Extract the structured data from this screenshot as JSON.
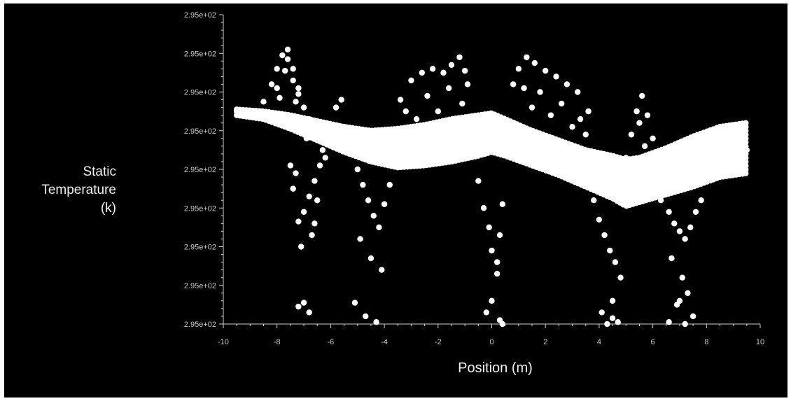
{
  "chart_data": {
    "type": "scatter",
    "title": "",
    "xlabel": "Position (m)",
    "ylabel_lines": [
      "Static",
      "Temperature",
      "(k)"
    ],
    "xlim": [
      -10,
      10
    ],
    "x_ticks": [
      -10,
      -8,
      -6,
      -4,
      -2,
      0,
      2,
      4,
      6,
      8,
      10
    ],
    "x_tick_labels": [
      "-10",
      "-8",
      "-6",
      "-4",
      "-2",
      "0",
      "2",
      "4",
      "6",
      "8",
      "10"
    ],
    "y_tick_labels": [
      "2.95e+02",
      "2.95e+02",
      "2.95e+02",
      "2.95e+02",
      "2.95e+02",
      "2.95e+02",
      "2.95e+02",
      "2.95e+02",
      "2.95e+02"
    ],
    "y_level_range": [
      0,
      8
    ],
    "y_level_note_units": "tick index (0 = lowest labeled tick, 8 = highest); all ticks print 2.95e+02",
    "grid": false,
    "background": "#000000",
    "marker_color": "#ffffff",
    "band": {
      "x": [
        -9.5,
        -8.5,
        -7.5,
        -6.5,
        -5.5,
        -4.5,
        -3.5,
        -2.5,
        -1.5,
        -0.5,
        0.0,
        0.5,
        1.5,
        2.5,
        3.5,
        4.5,
        5.0,
        5.5,
        6.5,
        7.5,
        8.5,
        9.5
      ],
      "top": [
        5.55,
        5.5,
        5.4,
        5.25,
        5.1,
        5.0,
        5.05,
        5.15,
        5.3,
        5.4,
        5.45,
        5.3,
        5.0,
        4.75,
        4.5,
        4.35,
        4.25,
        4.3,
        4.55,
        4.85,
        5.1,
        5.2
      ],
      "bottom": [
        5.4,
        5.3,
        5.05,
        4.75,
        4.45,
        4.2,
        4.05,
        4.1,
        4.2,
        4.35,
        4.45,
        4.35,
        4.1,
        3.85,
        3.55,
        3.25,
        3.05,
        3.15,
        3.35,
        3.55,
        3.8,
        3.9
      ]
    },
    "series": [
      {
        "x": [
          -9.5,
          -9.0,
          -8.5,
          -8.0,
          -7.7,
          -7.4,
          -7.0,
          -6.5,
          -6.2,
          -5.8,
          -5.5,
          -5.2,
          -4.8,
          -4.4,
          -4.0,
          -3.6,
          -3.2,
          -2.8,
          -2.4,
          -2.0,
          -1.6,
          -1.2,
          -0.8,
          -0.4,
          0.0,
          0.4,
          0.8,
          1.2,
          1.6,
          2.0,
          2.4,
          2.8,
          3.2,
          3.6,
          4.0,
          4.4,
          4.8,
          5.2,
          5.6,
          6.0,
          6.4,
          6.8,
          7.2,
          7.6,
          8.0,
          8.4,
          8.8,
          9.2,
          9.5
        ],
        "y": [
          5.5,
          5.45,
          5.4,
          5.3,
          5.25,
          5.2,
          5.05,
          4.95,
          4.85,
          4.75,
          4.65,
          4.6,
          4.55,
          4.5,
          4.5,
          4.55,
          4.6,
          4.65,
          4.7,
          4.75,
          4.8,
          4.85,
          4.9,
          4.95,
          4.95,
          4.85,
          4.7,
          4.55,
          4.4,
          4.3,
          4.2,
          4.05,
          3.95,
          3.85,
          3.75,
          3.65,
          3.6,
          3.6,
          3.7,
          3.75,
          3.85,
          3.95,
          4.05,
          4.15,
          4.25,
          4.3,
          4.35,
          4.45,
          4.5
        ]
      },
      {
        "x": [
          -8.5,
          -8.2,
          -8.0,
          -7.8,
          -7.6,
          -7.4,
          -7.2,
          -7.0,
          -6.8,
          -8.0,
          -7.7,
          -7.4,
          -7.2,
          -7.9,
          -7.6,
          -7.3
        ],
        "y": [
          5.75,
          6.2,
          6.6,
          6.95,
          7.1,
          6.6,
          6.1,
          5.6,
          5.3,
          6.1,
          6.55,
          6.3,
          5.95,
          5.85,
          6.85,
          5.75
        ]
      },
      {
        "x": [
          -7.5,
          -7.4,
          -7.2,
          -7.0,
          -6.8,
          -6.6,
          -6.4,
          -6.3,
          -6.9,
          -7.3,
          -6.7,
          -7.1,
          -6.5,
          -7.0,
          -6.8,
          -7.2,
          -6.6,
          -6.2
        ],
        "y": [
          4.1,
          3.5,
          2.65,
          2.9,
          3.3,
          3.7,
          4.1,
          4.5,
          4.8,
          3.9,
          2.3,
          2.0,
          3.2,
          0.55,
          0.3,
          0.45,
          2.6,
          4.3
        ]
      },
      {
        "x": [
          -6.0,
          -5.8,
          -5.6,
          -5.5,
          -5.3,
          -5.0,
          -4.8,
          -4.6,
          -4.4,
          -4.2,
          -4.0,
          -3.8,
          -4.9,
          -4.5,
          -4.1,
          -5.1,
          -4.7,
          -4.3
        ],
        "y": [
          5.0,
          5.6,
          5.8,
          5.1,
          4.6,
          4.0,
          3.6,
          3.2,
          2.8,
          2.5,
          3.1,
          3.6,
          2.2,
          1.7,
          1.4,
          0.55,
          0.2,
          0.05
        ]
      },
      {
        "x": [
          -3.4,
          -3.0,
          -2.6,
          -2.2,
          -1.8,
          -1.5,
          -1.2,
          -1.0,
          -0.9,
          -3.2,
          -2.4,
          -1.6,
          -1.1,
          -2.8,
          -2.0
        ],
        "y": [
          5.8,
          6.3,
          6.5,
          6.6,
          6.5,
          6.7,
          6.9,
          6.55,
          6.2,
          5.5,
          5.9,
          6.1,
          5.7,
          5.3,
          5.5
        ]
      },
      {
        "x": [
          -0.5,
          -0.3,
          -0.1,
          0.0,
          0.2,
          0.3,
          0.4,
          0.2,
          0.0,
          -0.2,
          0.3,
          0.4
        ],
        "y": [
          3.7,
          3.0,
          2.5,
          1.9,
          1.6,
          2.3,
          3.1,
          1.3,
          0.6,
          0.3,
          0.1,
          0.0
        ]
      },
      {
        "x": [
          0.8,
          1.0,
          1.3,
          1.6,
          2.0,
          2.4,
          2.8,
          3.2,
          3.6,
          1.2,
          1.8,
          2.6,
          3.3,
          1.5,
          2.2,
          3.0,
          3.5
        ],
        "y": [
          6.2,
          6.6,
          6.9,
          6.75,
          6.55,
          6.4,
          6.2,
          6.0,
          5.5,
          6.1,
          6.0,
          5.7,
          5.3,
          5.6,
          5.4,
          5.1,
          4.9
        ]
      },
      {
        "x": [
          3.8,
          4.0,
          4.2,
          4.4,
          4.6,
          4.8,
          4.5,
          4.1,
          4.7,
          4.3,
          4.5
        ],
        "y": [
          3.2,
          2.7,
          2.3,
          1.9,
          1.6,
          1.2,
          0.6,
          0.3,
          0.05,
          0.0,
          0.15
        ]
      },
      {
        "x": [
          5.0,
          5.2,
          5.4,
          5.6,
          5.8,
          6.0,
          5.5,
          5.7,
          5.3
        ],
        "y": [
          4.3,
          4.9,
          5.5,
          5.9,
          5.4,
          4.8,
          5.2,
          4.6,
          4.0
        ]
      },
      {
        "x": [
          6.0,
          6.3,
          6.6,
          6.8,
          7.0,
          7.2,
          7.4,
          7.6,
          7.8,
          6.7,
          7.1,
          7.3,
          6.9,
          7.5,
          6.6,
          7.2,
          7.0
        ],
        "y": [
          3.5,
          3.2,
          2.9,
          2.6,
          2.4,
          2.2,
          2.5,
          2.9,
          3.2,
          1.7,
          1.2,
          0.8,
          0.5,
          0.2,
          0.05,
          0.0,
          0.6
        ]
      }
    ]
  }
}
